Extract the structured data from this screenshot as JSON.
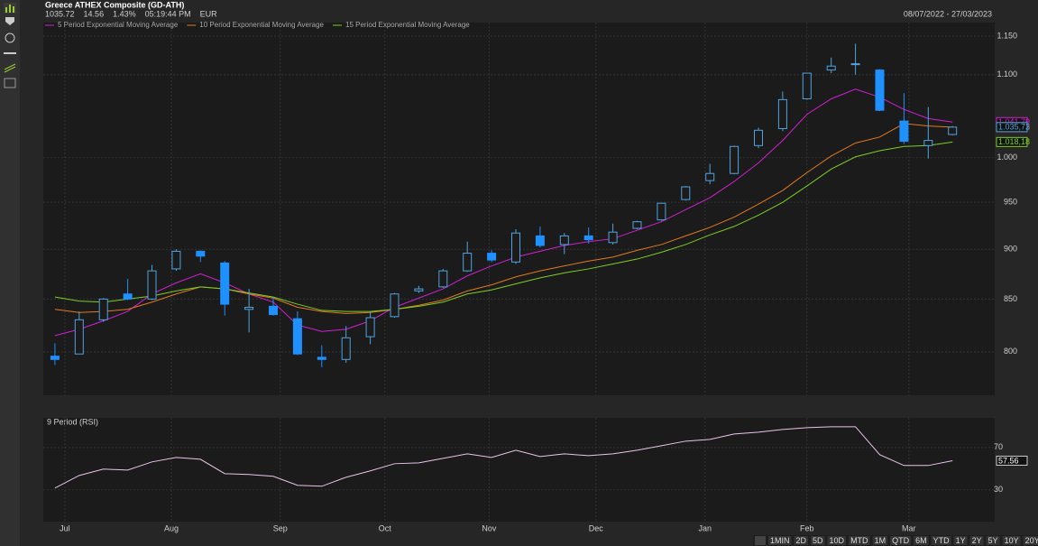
{
  "header": {
    "title": "Greece ATHEX Composite (GD-ATH)",
    "quote": [
      "1035.72",
      "14.56",
      "1.43%",
      "05:19:44 PM",
      "EUR"
    ],
    "range": "08/07/2022 - 27/03/2023"
  },
  "range_buttons": [
    "1MIN",
    "2D",
    "5D",
    "10D",
    "MTD",
    "1M",
    "QTD",
    "6M",
    "YTD",
    "1Y",
    "2Y",
    "5Y",
    "10Y",
    "20Y"
  ],
  "chart_data": [
    {
      "type": "candlestick",
      "log": true,
      "grid": true,
      "up_color": "#4fa3e0",
      "down_color": "#1e90ff",
      "x": [
        0,
        1,
        2,
        3,
        4,
        5,
        6,
        7,
        8,
        9,
        10,
        11,
        12,
        13,
        14,
        15,
        16,
        17,
        18,
        19,
        20,
        21,
        22,
        23,
        24,
        25,
        26,
        27,
        28,
        29,
        30,
        31,
        32,
        33,
        34,
        35,
        36,
        37
      ],
      "open": [
        796,
        798,
        830,
        855,
        850,
        880,
        898,
        886,
        840,
        843,
        831,
        795,
        793,
        814,
        833,
        858,
        862,
        878,
        896,
        887,
        914,
        905,
        914,
        907,
        922,
        931,
        953,
        974,
        982,
        1014,
        1034,
        1070,
        1106,
        1113,
        1106,
        1043,
        1014,
        1027
      ],
      "high": [
        808,
        838,
        851,
        870,
        884,
        900,
        899,
        888,
        860,
        852,
        838,
        806,
        824,
        838,
        856,
        863,
        880,
        908,
        899,
        921,
        924,
        917,
        923,
        927,
        930,
        949,
        968,
        993,
        1014,
        1035,
        1079,
        1102,
        1122,
        1140,
        1107,
        1077,
        1060,
        1037
      ],
      "low": [
        788,
        798,
        828,
        849,
        849,
        878,
        887,
        834,
        818,
        834,
        797,
        786,
        790,
        807,
        832,
        856,
        861,
        877,
        887,
        885,
        902,
        895,
        906,
        905,
        921,
        930,
        952,
        970,
        981,
        1011,
        1031,
        1069,
        1102,
        1100,
        1055,
        1016,
        999,
        1026
      ],
      "close": [
        793,
        830,
        850,
        850,
        878,
        898,
        893,
        845,
        842,
        835,
        798,
        793,
        813,
        832,
        855,
        860,
        878,
        896,
        889,
        917,
        904,
        914,
        910,
        918,
        929,
        949,
        967,
        982,
        1013,
        1032,
        1069,
        1102,
        1111,
        1114,
        1056,
        1019,
        1020,
        1035.72
      ],
      "last_value": 1035.72,
      "last_label": "1.035,72",
      "xlim": [
        -0.48,
        38.74
      ],
      "ylim": [
        761,
        1168
      ],
      "xticks": [
        {
          "value": 0.41,
          "label": "Jul"
        },
        {
          "value": 4.8,
          "label": "Aug"
        },
        {
          "value": 9.29,
          "label": "Sep"
        },
        {
          "value": 13.6,
          "label": "Oct"
        },
        {
          "value": 17.9,
          "label": "Nov"
        },
        {
          "value": 22.3,
          "label": "Dec"
        },
        {
          "value": 26.8,
          "label": "Jan"
        },
        {
          "value": 31.0,
          "label": "Feb"
        },
        {
          "value": 35.2,
          "label": "Mar"
        }
      ],
      "yticks": [
        {
          "value": 800,
          "label": "800"
        },
        {
          "value": 850,
          "label": "850"
        },
        {
          "value": 900,
          "label": "900"
        },
        {
          "value": 950,
          "label": "950"
        },
        {
          "value": 1000,
          "label": "1.000"
        },
        {
          "value": 1100,
          "label": "1.100"
        },
        {
          "value": 1150,
          "label": "1.150"
        }
      ],
      "series": [
        {
          "name": "5 Period Exponential Moving Average",
          "color": "#d020d0",
          "last_value": 1041.79,
          "last_label": "1.041,79",
          "values": [
            815,
            821,
            829,
            838,
            855,
            866,
            875,
            866,
            855,
            847,
            825,
            819,
            821,
            829,
            842,
            851,
            860,
            873,
            883,
            892,
            898,
            904,
            908,
            911,
            920,
            929,
            942,
            955,
            973,
            994,
            1020,
            1051,
            1070,
            1082,
            1072,
            1057,
            1046,
            1041.79
          ]
        },
        {
          "name": "10 Period Exponential Moving Average",
          "color": "#e07a20",
          "last_value": 1035.76,
          "last_label": "1.035,76",
          "values": [
            840,
            837,
            838,
            840,
            847,
            855,
            862,
            860,
            855,
            851,
            842,
            838,
            836,
            837,
            840,
            844,
            849,
            858,
            864,
            872,
            878,
            883,
            888,
            892,
            899,
            905,
            914,
            923,
            934,
            948,
            963,
            983,
            1002,
            1017,
            1024,
            1040,
            1037,
            1035.76
          ]
        },
        {
          "name": "15 Period Exponential Moving Average",
          "color": "#7ccf20",
          "last_value": 1018.18,
          "last_label": "1.018,18",
          "values": [
            852,
            848,
            847,
            850,
            853,
            858,
            862,
            860,
            856,
            852,
            845,
            839,
            838,
            838,
            840,
            843,
            847,
            855,
            859,
            865,
            871,
            876,
            880,
            885,
            890,
            897,
            905,
            915,
            924,
            936,
            950,
            968,
            987,
            1001,
            1008,
            1013,
            1014,
            1018.18
          ]
        }
      ]
    },
    {
      "type": "line",
      "grid": true,
      "title": "9 Period (RSI)",
      "ylim": [
        0,
        98
      ],
      "yticks": [
        30,
        70
      ],
      "series": [
        {
          "color": "#e8c4e8",
          "last_value": 57.56,
          "last_label": "57.56",
          "values": [
            31.7,
            43.6,
            49.6,
            48.7,
            56.4,
            60.6,
            58.9,
            45.3,
            44.5,
            42.8,
            34.3,
            33.4,
            41.9,
            47.9,
            54.7,
            55.5,
            59.8,
            64.0,
            60.6,
            67.4,
            61.5,
            64.0,
            62.3,
            64.0,
            67.4,
            71.7,
            76.0,
            77.7,
            82.8,
            84.5,
            87.0,
            88.7,
            89.6,
            89.6,
            63.2,
            53.0,
            53.0,
            57.56
          ]
        }
      ]
    }
  ]
}
